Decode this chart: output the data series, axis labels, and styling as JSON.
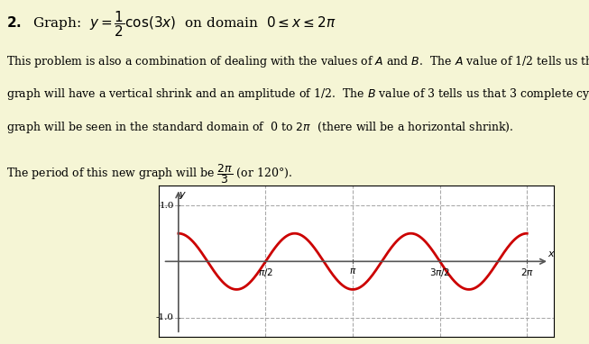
{
  "background_color": "#f5f5d5",
  "fig_width": 6.53,
  "fig_height": 3.82,
  "amplitude": 0.5,
  "B": 3,
  "curve_color": "#cc0000",
  "curve_linewidth": 2.0,
  "grid_color": "#aaaaaa",
  "grid_style": "--",
  "grid_linewidth": 0.8,
  "axis_color": "#555555",
  "x_ticks": [
    1.5708,
    3.1416,
    4.7124,
    6.2832
  ],
  "x_tick_labels": [
    "$\\pi/2$",
    "$\\pi$",
    "$3\\pi/2$",
    "$2\\pi$"
  ],
  "y_ticks": [
    -1.0,
    1.0
  ],
  "y_tick_labels": [
    "-1.0",
    "1.0"
  ],
  "y_label": "$y$",
  "x_label": "$x$",
  "plot_bg": "#ffffff"
}
